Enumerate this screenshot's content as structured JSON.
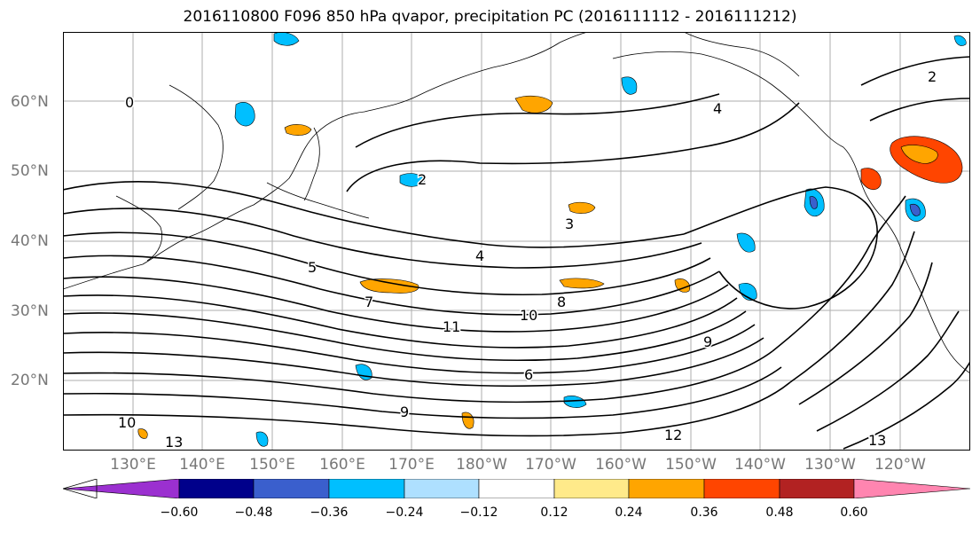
{
  "title": "2016110800 F096 850 hPa qvapor, precipitation PC (2016111112 - 2016111212)",
  "latitude_labels": [
    "60°N",
    "50°N",
    "40°N",
    "30°N",
    "20°N"
  ],
  "longitude_labels": [
    "130°E",
    "140°E",
    "150°E",
    "160°E",
    "170°E",
    "180°W",
    "170°W",
    "160°W",
    "150°W",
    "140°W",
    "130°W",
    "120°W"
  ],
  "contour_labels": [
    "0",
    "2",
    "2",
    "3",
    "4",
    "4",
    "5",
    "7",
    "8",
    "9",
    "10",
    "11",
    "12",
    "13",
    "13",
    "10",
    "9",
    "6"
  ],
  "colorbar": {
    "tick_labels": [
      "−0.60",
      "−0.48",
      "−0.36",
      "−0.24",
      "−0.12",
      "0.12",
      "0.24",
      "0.36",
      "0.48",
      "0.60"
    ],
    "colors": [
      "#9b30d0",
      "#00008b",
      "#3a5fcd",
      "#00bfff",
      "#aee0ff",
      "#ffffff",
      "#ffea8a",
      "#ffa500",
      "#ff4500",
      "#b22222",
      "#ff85b0"
    ]
  }
}
